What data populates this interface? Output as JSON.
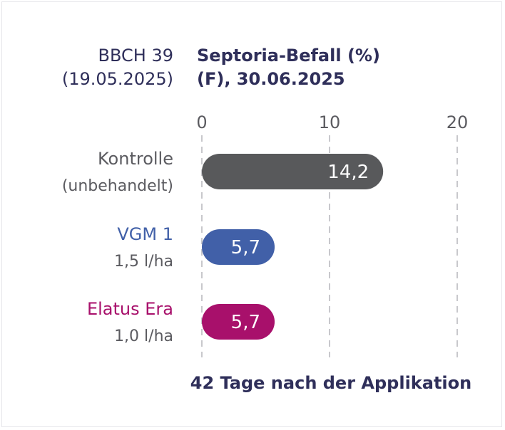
{
  "header": {
    "stage_line1": "BBCH 39",
    "stage_line2": "(19.05.2025)",
    "title_line1": "Septoria-Befall (%)",
    "title_line2": "(F), 30.06.2025"
  },
  "footer": {
    "caption": "42 Tage nach der Applikation"
  },
  "colors": {
    "navy": "#2f2f5a",
    "gray_text": "#5b5b60",
    "control_bar": "#58595b",
    "vgm_blue": "#4160a8",
    "elatus_magenta": "#a8106b",
    "grid": "#c8c8cc",
    "bar_label": "#ffffff"
  },
  "chart_data": {
    "type": "bar",
    "orientation": "horizontal",
    "title": "Septoria-Befall (%)",
    "xlim": [
      0,
      20
    ],
    "x_ticks": [
      "0",
      "10",
      "20"
    ],
    "grid": true,
    "categories": [
      {
        "name": "Kontrolle",
        "sub": "(unbehandelt)",
        "value": 14.2,
        "value_label": "14,2",
        "color": "#58595b",
        "name_color": "#5b5b60"
      },
      {
        "name": "VGM 1",
        "sub": "1,5 l/ha",
        "value": 5.7,
        "value_label": "5,7",
        "color": "#4160a8",
        "name_color": "#4160a8"
      },
      {
        "name": "Elatus Era",
        "sub": "1,0 l/ha",
        "value": 5.7,
        "value_label": "5,7",
        "color": "#a8106b",
        "name_color": "#a8106b"
      }
    ]
  }
}
